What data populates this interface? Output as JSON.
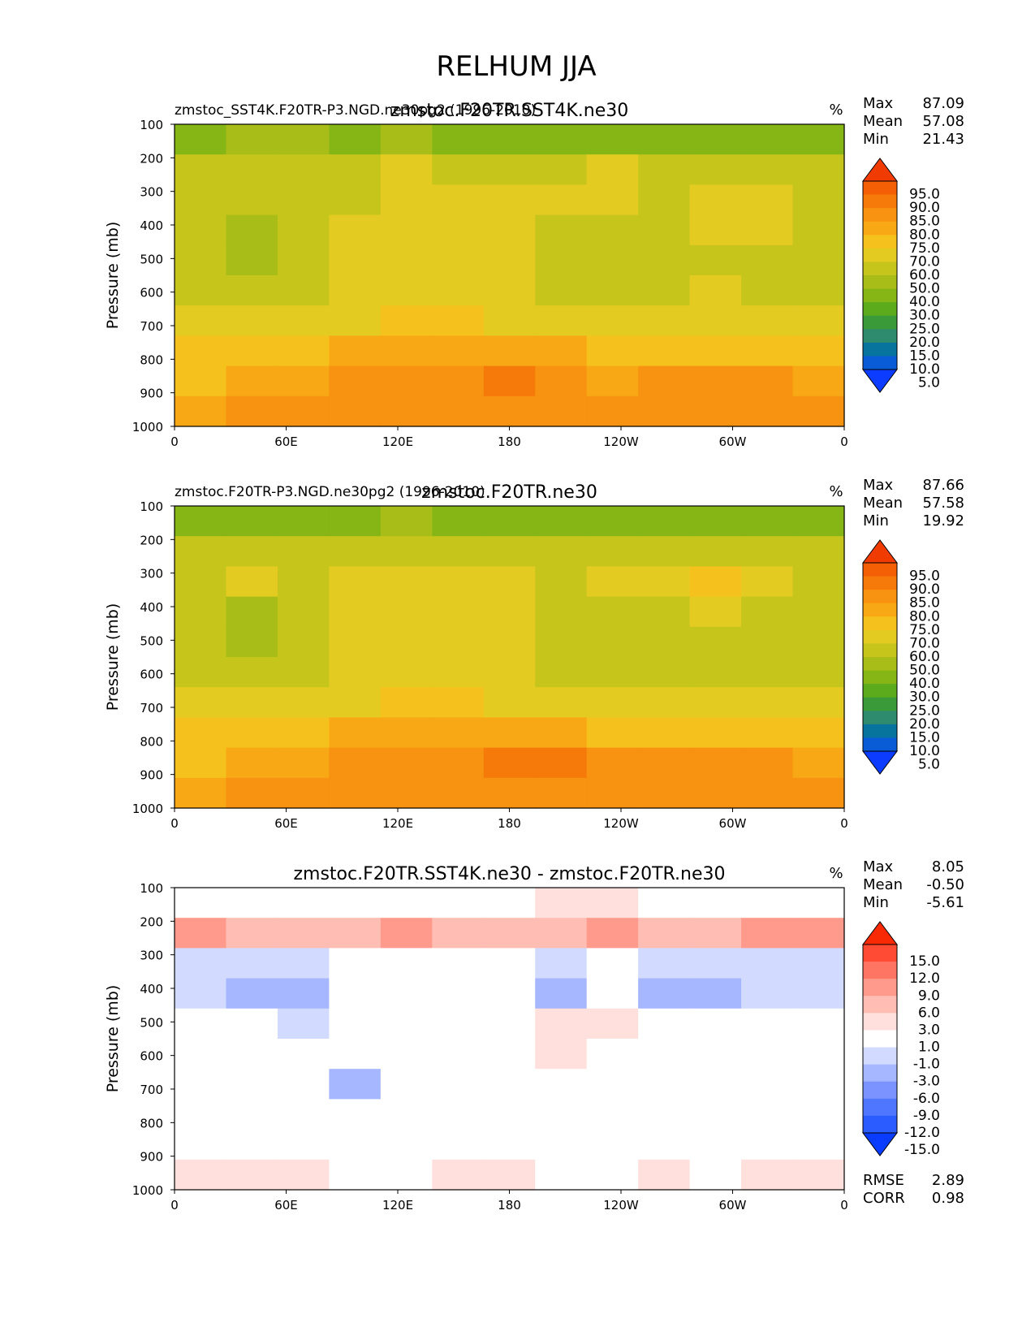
{
  "figure_title": "RELHUM JJA",
  "contour_colors": {
    "abs": [
      "#0b3cff",
      "#0a5cd6",
      "#07749e",
      "#2e8b6e",
      "#3a9a3a",
      "#5bab1c",
      "#86b516",
      "#a9bd19",
      "#c6c51c",
      "#e4cb22",
      "#f5c21d",
      "#f8a815",
      "#f79310",
      "#f67a0a",
      "#f45f06",
      "#f03c02"
    ],
    "diff": [
      "#0a3cff",
      "#2a5cff",
      "#4f76ff",
      "#7a93ff",
      "#a6b6ff",
      "#d2dbff",
      "#ffffff",
      "#ffe0dc",
      "#ffbdb3",
      "#ff9a8c",
      "#ff7563",
      "#ff4b33",
      "#f82a05"
    ]
  },
  "chart_data": [
    {
      "type": "contour",
      "title": "zmstoc.F20TR.SST4K.ne30",
      "left_title": "zmstoc_SST4K.F20TR-P3.NGD.ne30pg2 (1996-2010)",
      "units": "%",
      "stats": [
        {
          "label": "Max",
          "value": "87.09"
        },
        {
          "label": "Mean",
          "value": "57.08"
        },
        {
          "label": "Min",
          "value": "21.43"
        }
      ],
      "ylabel": "Pressure (mb)",
      "yticks": [
        "100",
        "200",
        "300",
        "400",
        "500",
        "600",
        "700",
        "800",
        "900",
        "1000"
      ],
      "xticks": [
        "0",
        "60E",
        "120E",
        "180",
        "120W",
        "60W",
        "0"
      ],
      "ylim": [
        1000,
        100
      ],
      "xlim": [
        0,
        360
      ],
      "colorbar_levels": [
        "95.0",
        "90.0",
        "85.0",
        "80.0",
        "75.0",
        "70.0",
        "60.0",
        "50.0",
        "40.0",
        "30.0",
        "25.0",
        "20.0",
        "15.0",
        "10.0",
        "5.0"
      ],
      "colormap": "abs",
      "bands": [
        [
          30,
          40,
          40,
          35,
          40,
          35,
          30,
          30,
          30,
          30,
          30,
          30,
          30
        ],
        [
          50,
          50,
          50,
          50,
          60,
          50,
          50,
          50,
          60,
          50,
          50,
          50,
          50
        ],
        [
          50,
          50,
          50,
          50,
          60,
          60,
          60,
          60,
          60,
          50,
          60,
          60,
          50
        ],
        [
          50,
          40,
          50,
          60,
          60,
          60,
          60,
          50,
          50,
          50,
          60,
          60,
          50
        ],
        [
          50,
          40,
          50,
          60,
          60,
          60,
          60,
          50,
          50,
          50,
          50,
          50,
          50
        ],
        [
          50,
          50,
          50,
          60,
          60,
          60,
          60,
          50,
          50,
          50,
          60,
          50,
          50
        ],
        [
          60,
          60,
          60,
          60,
          70,
          70,
          60,
          60,
          60,
          60,
          60,
          60,
          60
        ],
        [
          70,
          70,
          70,
          75,
          75,
          75,
          75,
          75,
          70,
          70,
          70,
          70,
          70
        ],
        [
          70,
          75,
          75,
          80,
          80,
          80,
          85,
          80,
          75,
          80,
          80,
          80,
          75
        ],
        [
          75,
          80,
          80,
          80,
          80,
          80,
          80,
          80,
          80,
          80,
          80,
          80,
          80
        ]
      ]
    },
    {
      "type": "contour",
      "title": "zmstoc.F20TR.ne30",
      "left_title": "zmstoc.F20TR-P3.NGD.ne30pg2 (1996-2010)",
      "units": "%",
      "stats": [
        {
          "label": "Max",
          "value": "87.66"
        },
        {
          "label": "Mean",
          "value": "57.58"
        },
        {
          "label": "Min",
          "value": "19.92"
        }
      ],
      "ylabel": "Pressure (mb)",
      "yticks": [
        "100",
        "200",
        "300",
        "400",
        "500",
        "600",
        "700",
        "800",
        "900",
        "1000"
      ],
      "xticks": [
        "0",
        "60E",
        "120E",
        "180",
        "120W",
        "60W",
        "0"
      ],
      "ylim": [
        1000,
        100
      ],
      "xlim": [
        0,
        360
      ],
      "colorbar_levels": [
        "95.0",
        "90.0",
        "85.0",
        "80.0",
        "75.0",
        "70.0",
        "60.0",
        "50.0",
        "40.0",
        "30.0",
        "25.0",
        "20.0",
        "15.0",
        "10.0",
        "5.0"
      ],
      "colormap": "abs",
      "bands": [
        [
          30,
          30,
          30,
          35,
          40,
          35,
          30,
          30,
          30,
          30,
          30,
          30,
          30
        ],
        [
          50,
          50,
          50,
          50,
          50,
          50,
          50,
          50,
          50,
          50,
          50,
          50,
          50
        ],
        [
          50,
          60,
          50,
          60,
          60,
          60,
          60,
          50,
          60,
          60,
          70,
          60,
          50
        ],
        [
          50,
          40,
          50,
          60,
          60,
          60,
          60,
          50,
          50,
          50,
          60,
          50,
          50
        ],
        [
          50,
          40,
          50,
          60,
          60,
          60,
          60,
          50,
          50,
          50,
          50,
          50,
          50
        ],
        [
          50,
          50,
          50,
          60,
          60,
          60,
          60,
          50,
          50,
          50,
          50,
          50,
          50
        ],
        [
          60,
          60,
          60,
          60,
          70,
          70,
          60,
          60,
          60,
          60,
          60,
          60,
          60
        ],
        [
          70,
          70,
          70,
          75,
          75,
          75,
          75,
          75,
          70,
          70,
          70,
          70,
          70
        ],
        [
          70,
          75,
          75,
          80,
          80,
          80,
          85,
          85,
          80,
          80,
          80,
          80,
          75
        ],
        [
          75,
          80,
          80,
          80,
          80,
          80,
          80,
          80,
          80,
          80,
          80,
          80,
          80
        ]
      ]
    },
    {
      "type": "contour",
      "title": "zmstoc.F20TR.SST4K.ne30 - zmstoc.F20TR.ne30",
      "left_title": "",
      "units": "%",
      "stats": [
        {
          "label": "Max",
          "value": "8.05"
        },
        {
          "label": "Mean",
          "value": "-0.50"
        },
        {
          "label": "Min",
          "value": "-5.61"
        }
      ],
      "extra_stats": [
        {
          "label": "RMSE",
          "value": "2.89"
        },
        {
          "label": "CORR",
          "value": "0.98"
        }
      ],
      "ylabel": "Pressure (mb)",
      "yticks": [
        "100",
        "200",
        "300",
        "400",
        "500",
        "600",
        "700",
        "800",
        "900",
        "1000"
      ],
      "xticks": [
        "0",
        "60E",
        "120E",
        "180",
        "120W",
        "60W",
        "0"
      ],
      "ylim": [
        1000,
        100
      ],
      "xlim": [
        0,
        360
      ],
      "colorbar_levels": [
        "15.0",
        "12.0",
        "9.0",
        "6.0",
        "3.0",
        "1.0",
        "-1.0",
        "-3.0",
        "-6.0",
        "-9.0",
        "-12.0",
        "-15.0"
      ],
      "colormap": "diff",
      "bands": [
        [
          -1,
          -1,
          -1,
          0,
          0,
          0,
          0,
          1,
          1,
          0,
          0,
          0,
          -1
        ],
        [
          6,
          3,
          3,
          3,
          6,
          3,
          3,
          3,
          6,
          3,
          3,
          6,
          6
        ],
        [
          -3,
          -3,
          -3,
          -1,
          0,
          -1,
          -1,
          -3,
          -1,
          -3,
          -3,
          -3,
          -3
        ],
        [
          -3,
          -6,
          -6,
          -1,
          -1,
          -1,
          -1,
          -6,
          -1,
          -6,
          -6,
          -3,
          -3
        ],
        [
          0,
          -1,
          -3,
          -1,
          -1,
          -1,
          0,
          1,
          1,
          0,
          -1,
          -1,
          -1
        ],
        [
          -1,
          -1,
          -1,
          -1,
          -1,
          -1,
          0,
          1,
          0,
          -1,
          -1,
          -1,
          -1
        ],
        [
          -1,
          -1,
          -1,
          -6,
          -1,
          -1,
          0,
          0,
          -1,
          -1,
          0,
          -1,
          -1
        ],
        [
          -1,
          -1,
          -1,
          -1,
          0,
          0,
          -1,
          0,
          -1,
          0,
          -1,
          -1,
          -1
        ],
        [
          -1,
          0,
          0,
          0,
          0,
          0,
          0,
          0,
          0,
          0,
          0,
          0,
          0
        ],
        [
          1,
          1,
          1,
          0,
          0,
          1,
          1,
          0,
          0,
          1,
          0,
          1,
          1
        ]
      ]
    }
  ]
}
